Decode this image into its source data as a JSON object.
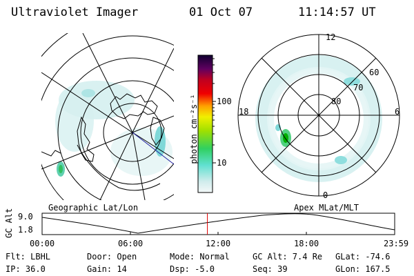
{
  "header": {
    "title": "Ultraviolet Imager",
    "date": "01 Oct 07",
    "time": "11:14:57 UT"
  },
  "colorbar": {
    "unit_label": "photon cm⁻²s⁻¹",
    "ticks": [
      "100",
      "10"
    ]
  },
  "left_panel": {
    "caption": "Geographic Lat/Lon"
  },
  "right_panel": {
    "caption": "Apex MLat/MLT",
    "mlt_labels": {
      "top": "12",
      "left": "18",
      "right": "6",
      "bottom": "0"
    },
    "lat_labels": [
      "60",
      "70",
      "80"
    ]
  },
  "timeline": {
    "ylabel": "GC Alt",
    "y_ticks": [
      "9.0",
      "1.8"
    ],
    "x_ticks": [
      "00:00",
      "06:00",
      "12:00",
      "18:00",
      "23:59"
    ],
    "current_hour": 11.25
  },
  "info": {
    "filter": "Flt: LBHL",
    "door": "Door: Open",
    "mode": "Mode: Normal",
    "gc_alt": "GC Alt: 7.4 Re",
    "glat": "GLat: -74.6",
    "ip": "IP: 36.0",
    "gain": "Gain: 14",
    "dsp": "Dsp:   -5.0",
    "seq": "Seq: 39",
    "glon": "GLon: 167.5"
  },
  "colors": {
    "marker": "#e00000",
    "emission": "#7fd8d8",
    "emission_strong": "#00c000"
  }
}
